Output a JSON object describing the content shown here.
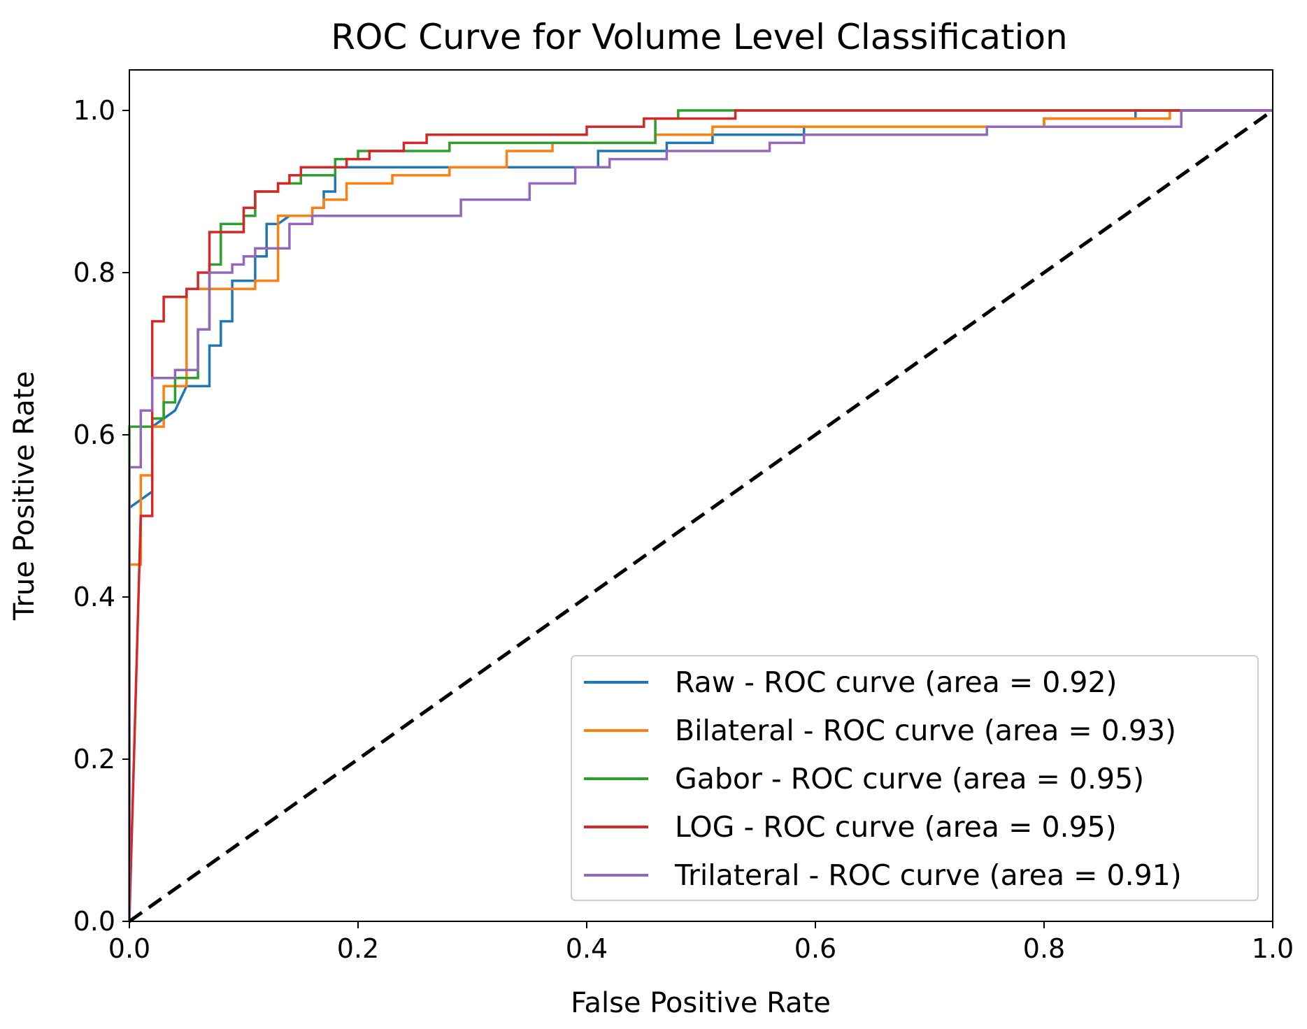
{
  "chart_data": {
    "type": "line",
    "title": "ROC Curve for Volume Level Classification",
    "xlabel": "False Positive Rate",
    "ylabel": "True Positive Rate",
    "xlim": [
      0.0,
      1.0
    ],
    "ylim": [
      0.0,
      1.05
    ],
    "xticks": [
      "0.0",
      "0.2",
      "0.4",
      "0.6",
      "0.8",
      "1.0"
    ],
    "yticks": [
      "0.0",
      "0.2",
      "0.4",
      "0.6",
      "0.8",
      "1.0"
    ],
    "grid": false,
    "legend_position": "lower-right",
    "series": [
      {
        "name": "Raw - ROC curve (area = 0.92)",
        "color": "#1f77b4",
        "points": [
          [
            0,
            0
          ],
          [
            0,
            0.51
          ],
          [
            0.02,
            0.53
          ],
          [
            0.02,
            0.61
          ],
          [
            0.04,
            0.63
          ],
          [
            0.05,
            0.66
          ],
          [
            0.07,
            0.66
          ],
          [
            0.07,
            0.71
          ],
          [
            0.08,
            0.71
          ],
          [
            0.08,
            0.74
          ],
          [
            0.09,
            0.74
          ],
          [
            0.09,
            0.79
          ],
          [
            0.11,
            0.79
          ],
          [
            0.11,
            0.82
          ],
          [
            0.12,
            0.82
          ],
          [
            0.12,
            0.86
          ],
          [
            0.13,
            0.86
          ],
          [
            0.14,
            0.87
          ],
          [
            0.16,
            0.87
          ],
          [
            0.16,
            0.88
          ],
          [
            0.17,
            0.88
          ],
          [
            0.17,
            0.9
          ],
          [
            0.18,
            0.9
          ],
          [
            0.18,
            0.93
          ],
          [
            0.41,
            0.93
          ],
          [
            0.41,
            0.95
          ],
          [
            0.47,
            0.95
          ],
          [
            0.47,
            0.96
          ],
          [
            0.51,
            0.96
          ],
          [
            0.51,
            0.97
          ],
          [
            0.59,
            0.97
          ],
          [
            0.59,
            0.98
          ],
          [
            0.8,
            0.98
          ],
          [
            0.8,
            0.99
          ],
          [
            0.88,
            0.99
          ],
          [
            0.88,
            1.0
          ],
          [
            1.0,
            1.0
          ]
        ]
      },
      {
        "name": "Bilateral - ROC curve (area = 0.93)",
        "color": "#ff7f0e",
        "points": [
          [
            0,
            0
          ],
          [
            0,
            0.44
          ],
          [
            0.01,
            0.44
          ],
          [
            0.01,
            0.55
          ],
          [
            0.02,
            0.55
          ],
          [
            0.02,
            0.61
          ],
          [
            0.03,
            0.61
          ],
          [
            0.03,
            0.66
          ],
          [
            0.05,
            0.66
          ],
          [
            0.05,
            0.78
          ],
          [
            0.11,
            0.78
          ],
          [
            0.11,
            0.79
          ],
          [
            0.13,
            0.79
          ],
          [
            0.13,
            0.87
          ],
          [
            0.16,
            0.87
          ],
          [
            0.16,
            0.88
          ],
          [
            0.17,
            0.88
          ],
          [
            0.17,
            0.89
          ],
          [
            0.19,
            0.89
          ],
          [
            0.19,
            0.91
          ],
          [
            0.23,
            0.91
          ],
          [
            0.23,
            0.92
          ],
          [
            0.28,
            0.92
          ],
          [
            0.28,
            0.93
          ],
          [
            0.33,
            0.93
          ],
          [
            0.33,
            0.95
          ],
          [
            0.37,
            0.95
          ],
          [
            0.37,
            0.96
          ],
          [
            0.46,
            0.96
          ],
          [
            0.46,
            0.97
          ],
          [
            0.51,
            0.97
          ],
          [
            0.51,
            0.98
          ],
          [
            0.75,
            0.98
          ],
          [
            0.75,
            0.98
          ],
          [
            0.8,
            0.98
          ],
          [
            0.8,
            0.99
          ],
          [
            0.91,
            0.99
          ],
          [
            0.91,
            1.0
          ],
          [
            1.0,
            1.0
          ]
        ]
      },
      {
        "name": "Gabor - ROC curve (area = 0.95)",
        "color": "#2ca02c",
        "points": [
          [
            0,
            0
          ],
          [
            0,
            0.61
          ],
          [
            0.02,
            0.61
          ],
          [
            0.02,
            0.62
          ],
          [
            0.03,
            0.62
          ],
          [
            0.03,
            0.64
          ],
          [
            0.04,
            0.64
          ],
          [
            0.04,
            0.67
          ],
          [
            0.06,
            0.67
          ],
          [
            0.06,
            0.73
          ],
          [
            0.07,
            0.73
          ],
          [
            0.07,
            0.81
          ],
          [
            0.08,
            0.81
          ],
          [
            0.08,
            0.86
          ],
          [
            0.1,
            0.86
          ],
          [
            0.1,
            0.87
          ],
          [
            0.11,
            0.87
          ],
          [
            0.11,
            0.9
          ],
          [
            0.13,
            0.9
          ],
          [
            0.13,
            0.91
          ],
          [
            0.15,
            0.91
          ],
          [
            0.15,
            0.92
          ],
          [
            0.18,
            0.92
          ],
          [
            0.18,
            0.94
          ],
          [
            0.2,
            0.94
          ],
          [
            0.2,
            0.95
          ],
          [
            0.23,
            0.95
          ],
          [
            0.23,
            0.95
          ],
          [
            0.28,
            0.95
          ],
          [
            0.28,
            0.96
          ],
          [
            0.46,
            0.96
          ],
          [
            0.46,
            0.99
          ],
          [
            0.48,
            0.99
          ],
          [
            0.48,
            1.0
          ],
          [
            1.0,
            1.0
          ]
        ]
      },
      {
        "name": "LOG - ROC curve (area = 0.95)",
        "color": "#d62728",
        "points": [
          [
            0,
            0
          ],
          [
            0.01,
            0.5
          ],
          [
            0.02,
            0.5
          ],
          [
            0.02,
            0.74
          ],
          [
            0.03,
            0.74
          ],
          [
            0.03,
            0.77
          ],
          [
            0.05,
            0.77
          ],
          [
            0.05,
            0.78
          ],
          [
            0.06,
            0.78
          ],
          [
            0.06,
            0.8
          ],
          [
            0.07,
            0.8
          ],
          [
            0.07,
            0.85
          ],
          [
            0.1,
            0.85
          ],
          [
            0.1,
            0.88
          ],
          [
            0.11,
            0.88
          ],
          [
            0.11,
            0.9
          ],
          [
            0.13,
            0.9
          ],
          [
            0.13,
            0.91
          ],
          [
            0.14,
            0.91
          ],
          [
            0.14,
            0.92
          ],
          [
            0.15,
            0.92
          ],
          [
            0.15,
            0.93
          ],
          [
            0.19,
            0.93
          ],
          [
            0.19,
            0.94
          ],
          [
            0.21,
            0.94
          ],
          [
            0.21,
            0.95
          ],
          [
            0.24,
            0.95
          ],
          [
            0.24,
            0.96
          ],
          [
            0.26,
            0.96
          ],
          [
            0.26,
            0.97
          ],
          [
            0.4,
            0.97
          ],
          [
            0.4,
            0.98
          ],
          [
            0.45,
            0.98
          ],
          [
            0.45,
            0.99
          ],
          [
            0.53,
            0.99
          ],
          [
            0.53,
            1.0
          ],
          [
            1.0,
            1.0
          ]
        ]
      },
      {
        "name": "Trilateral - ROC curve (area = 0.91)",
        "color": "#9467bd",
        "points": [
          [
            0,
            0
          ],
          [
            0,
            0.56
          ],
          [
            0.01,
            0.56
          ],
          [
            0.01,
            0.63
          ],
          [
            0.02,
            0.63
          ],
          [
            0.02,
            0.67
          ],
          [
            0.04,
            0.67
          ],
          [
            0.04,
            0.68
          ],
          [
            0.06,
            0.68
          ],
          [
            0.06,
            0.73
          ],
          [
            0.07,
            0.73
          ],
          [
            0.07,
            0.8
          ],
          [
            0.09,
            0.8
          ],
          [
            0.09,
            0.81
          ],
          [
            0.1,
            0.81
          ],
          [
            0.1,
            0.82
          ],
          [
            0.11,
            0.82
          ],
          [
            0.11,
            0.83
          ],
          [
            0.14,
            0.83
          ],
          [
            0.14,
            0.86
          ],
          [
            0.16,
            0.86
          ],
          [
            0.16,
            0.87
          ],
          [
            0.29,
            0.87
          ],
          [
            0.29,
            0.89
          ],
          [
            0.35,
            0.89
          ],
          [
            0.35,
            0.91
          ],
          [
            0.39,
            0.91
          ],
          [
            0.39,
            0.93
          ],
          [
            0.42,
            0.93
          ],
          [
            0.42,
            0.94
          ],
          [
            0.47,
            0.94
          ],
          [
            0.47,
            0.95
          ],
          [
            0.56,
            0.95
          ],
          [
            0.56,
            0.96
          ],
          [
            0.59,
            0.96
          ],
          [
            0.59,
            0.97
          ],
          [
            0.75,
            0.97
          ],
          [
            0.75,
            0.98
          ],
          [
            0.92,
            0.98
          ],
          [
            0.92,
            1.0
          ],
          [
            1.0,
            1.0
          ]
        ]
      }
    ],
    "reference_line": {
      "name": "chance-diagonal",
      "color": "#000000",
      "style": "dashed",
      "points": [
        [
          0,
          0
        ],
        [
          1,
          1
        ]
      ]
    }
  }
}
